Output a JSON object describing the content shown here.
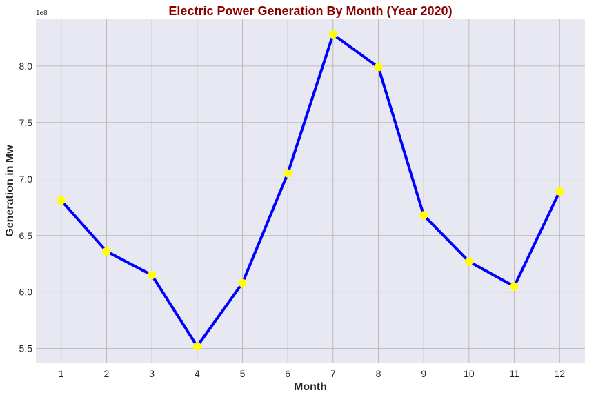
{
  "chart_data": {
    "type": "line",
    "title": "Electric Power Generation By Month (Year 2020)",
    "xlabel": "Month",
    "ylabel": "Generation in Mw",
    "y_offset_label": "1e8",
    "x": [
      1,
      2,
      3,
      4,
      5,
      6,
      7,
      8,
      9,
      10,
      11,
      12
    ],
    "x_tick_labels": [
      "1",
      "2",
      "3",
      "4",
      "5",
      "6",
      "7",
      "8",
      "9",
      "10",
      "11",
      "12"
    ],
    "series": [
      {
        "values": [
          681000000,
          636000000,
          615000000,
          552000000,
          608000000,
          705000000,
          828000000,
          799000000,
          668000000,
          627000000,
          605000000,
          689000000
        ]
      }
    ],
    "y_ticks": [
      550000000,
      600000000,
      650000000,
      700000000,
      750000000,
      800000000
    ],
    "y_tick_labels": [
      "5.5",
      "6.0",
      "6.5",
      "7.0",
      "7.5",
      "8.0"
    ],
    "xlim": [
      0.44,
      12.56
    ],
    "ylim": [
      537000000,
      842000000
    ],
    "grid": true,
    "colors": {
      "title": "#8b0000",
      "line": "#0000ff",
      "marker": "#ffff00",
      "plot_background": "#e8e8f2",
      "grid": "#b0b0b0"
    }
  }
}
